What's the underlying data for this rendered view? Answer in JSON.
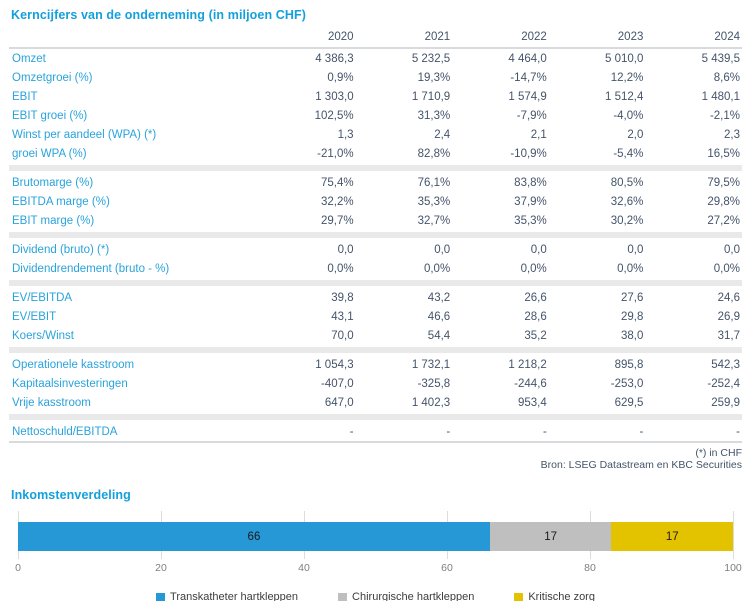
{
  "table": {
    "title": "Kerncijfers van de onderneming (in miljoen CHF)",
    "years": [
      "2020",
      "2021",
      "2022",
      "2023",
      "2024"
    ],
    "sections": [
      {
        "rows": [
          {
            "label": "Omzet",
            "values": [
              "4 386,3",
              "5 232,5",
              "4 464,0",
              "5 010,0",
              "5 439,5"
            ]
          },
          {
            "label": "Omzetgroei (%)",
            "values": [
              "0,9%",
              "19,3%",
              "-14,7%",
              "12,2%",
              "8,6%"
            ]
          },
          {
            "label": "EBIT",
            "values": [
              "1 303,0",
              "1 710,9",
              "1 574,9",
              "1 512,4",
              "1 480,1"
            ]
          },
          {
            "label": "EBIT groei (%)",
            "values": [
              "102,5%",
              "31,3%",
              "-7,9%",
              "-4,0%",
              "-2,1%"
            ]
          },
          {
            "label": "Winst per aandeel (WPA) (*)",
            "values": [
              "1,3",
              "2,4",
              "2,1",
              "2,0",
              "2,3"
            ]
          },
          {
            "label": "groei WPA (%)",
            "values": [
              "-21,0%",
              "82,8%",
              "-10,9%",
              "-5,4%",
              "16,5%"
            ]
          }
        ]
      },
      {
        "rows": [
          {
            "label": "Brutomarge (%)",
            "values": [
              "75,4%",
              "76,1%",
              "83,8%",
              "80,5%",
              "79,5%"
            ]
          },
          {
            "label": "EBITDA marge (%)",
            "values": [
              "32,2%",
              "35,3%",
              "37,9%",
              "32,6%",
              "29,8%"
            ]
          },
          {
            "label": "EBIT marge (%)",
            "values": [
              "29,7%",
              "32,7%",
              "35,3%",
              "30,2%",
              "27,2%"
            ]
          }
        ]
      },
      {
        "rows": [
          {
            "label": "Dividend (bruto) (*)",
            "values": [
              "0,0",
              "0,0",
              "0,0",
              "0,0",
              "0,0"
            ]
          },
          {
            "label": "Dividendrendement (bruto - %)",
            "values": [
              "0,0%",
              "0,0%",
              "0,0%",
              "0,0%",
              "0,0%"
            ]
          }
        ]
      },
      {
        "rows": [
          {
            "label": "EV/EBITDA",
            "values": [
              "39,8",
              "43,2",
              "26,6",
              "27,6",
              "24,6"
            ]
          },
          {
            "label": "EV/EBIT",
            "values": [
              "43,1",
              "46,6",
              "28,6",
              "29,8",
              "26,9"
            ]
          },
          {
            "label": "Koers/Winst",
            "values": [
              "70,0",
              "54,4",
              "35,2",
              "38,0",
              "31,7"
            ]
          }
        ]
      },
      {
        "rows": [
          {
            "label": "Operationele kasstroom",
            "values": [
              "1 054,3",
              "1 732,1",
              "1 218,2",
              "895,8",
              "542,3"
            ]
          },
          {
            "label": "Kapitaalsinvesteringen",
            "values": [
              "-407,0",
              "-325,8",
              "-244,6",
              "-253,0",
              "-252,4"
            ]
          },
          {
            "label": "Vrije kasstroom",
            "values": [
              "647,0",
              "1 402,3",
              "953,4",
              "629,5",
              "259,9"
            ]
          }
        ]
      },
      {
        "rows": [
          {
            "label": "Nettoschuld/EBITDA",
            "values": [
              "-",
              "-",
              "-",
              "-",
              "-"
            ]
          }
        ]
      }
    ],
    "footnotes": [
      "(*) in CHF",
      "Bron: LSEG Datastream en KBC Securities"
    ]
  },
  "chart_data": {
    "type": "bar",
    "subtype": "horizontal-stacked",
    "title": "Inkomstenverdeling",
    "series": [
      {
        "name": "Transkatheter hartkleppen",
        "value": 66,
        "color": "#2598d5"
      },
      {
        "name": "Chirurgische hartkleppen",
        "value": 17,
        "color": "#bfbfbf"
      },
      {
        "name": "Kritische zorg",
        "value": 17,
        "color": "#e3c200"
      }
    ],
    "xlim": [
      0,
      100
    ],
    "xticks": [
      0,
      20,
      40,
      60,
      80,
      100
    ],
    "grid": "vertical",
    "legend_position": "bottom"
  },
  "colors": {
    "accent_blue": "#14a0dc",
    "label_blue": "#29a3dc",
    "value_text": "#44546a",
    "separator_gray": "#e9e9e9",
    "rule_gray": "#d7dbde"
  }
}
